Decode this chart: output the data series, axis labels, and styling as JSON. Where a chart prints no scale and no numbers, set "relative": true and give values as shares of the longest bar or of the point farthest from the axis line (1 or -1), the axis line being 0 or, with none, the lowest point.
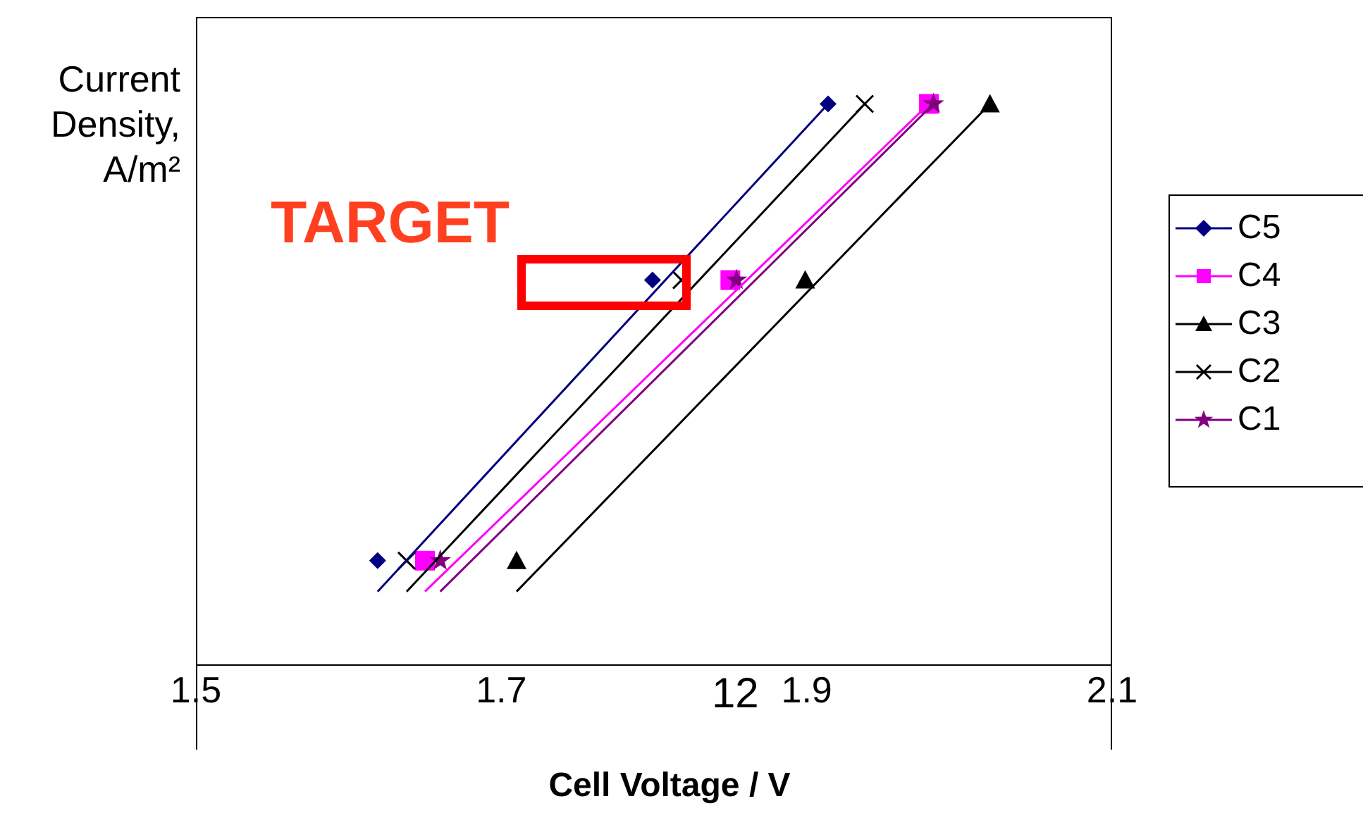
{
  "chart_data": {
    "type": "scatter",
    "xlabel": "Cell Voltage / V",
    "ylabel": "Current Density, A/m²",
    "relative": true,
    "xlim": [
      1.5,
      2.1
    ],
    "xticks": [
      {
        "value": 1.5,
        "label": "1.5"
      },
      {
        "value": 1.7,
        "label": "1.7"
      },
      {
        "value": 1.9,
        "label": "1.9"
      },
      {
        "value": 2.1,
        "label": "2.1"
      }
    ],
    "legend": "right",
    "tick_labels": "x",
    "series": [
      {
        "name": "C5",
        "color": "#000080",
        "marker": "diamond",
        "x": [
          1.619,
          1.799,
          1.914
        ],
        "values": [
          0.186,
          0.686,
          1
        ]
      },
      {
        "name": "C4",
        "color": "#ff00ff",
        "marker": "square",
        "x": [
          1.65,
          1.85,
          1.98
        ],
        "values": [
          0.186,
          0.686,
          1
        ]
      },
      {
        "name": "C3",
        "color": "#000000",
        "marker": "triangle",
        "x": [
          1.71,
          1.899,
          2.02
        ],
        "values": [
          0.186,
          0.686,
          1
        ]
      },
      {
        "name": "C2",
        "color": "#000000",
        "marker": "cross",
        "x": [
          1.638,
          1.818,
          1.938
        ],
        "values": [
          0.186,
          0.686,
          1
        ]
      },
      {
        "name": "C1",
        "color": "#800080",
        "marker": "star",
        "x": [
          1.66,
          1.854,
          1.983
        ],
        "values": [
          0.186,
          0.686,
          1
        ]
      },
      {
        "type": "line",
        "color": "#000080",
        "x": [
          1.619,
          1.914
        ],
        "values": [
          0.131,
          1
        ]
      },
      {
        "type": "line",
        "color": "#ff00ff",
        "x": [
          1.65,
          1.98
        ],
        "values": [
          0.131,
          1
        ]
      },
      {
        "type": "line",
        "color": "#000000",
        "x": [
          1.71,
          2.02
        ],
        "values": [
          0.131,
          1
        ]
      },
      {
        "type": "line",
        "color": "#000000",
        "x": [
          1.638,
          1.938
        ],
        "values": [
          0.131,
          1
        ]
      },
      {
        "type": "line",
        "color": "#800080",
        "x": [
          1.66,
          1.983
        ],
        "values": [
          0.131,
          1
        ]
      }
    ],
    "annotations": [
      "TARGET",
      "12"
    ]
  }
}
